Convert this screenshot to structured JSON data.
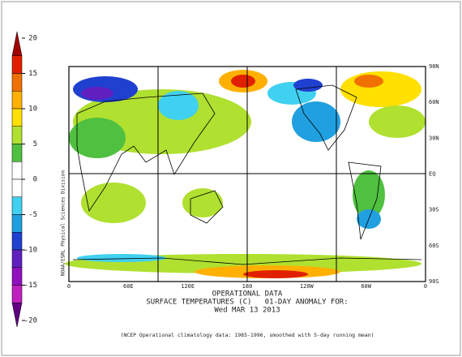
{
  "colorbar": {
    "lim": [
      -20,
      20
    ],
    "ticks": [
      20,
      15,
      10,
      5,
      0,
      -5,
      -10,
      -15,
      -20
    ],
    "colors": [
      "#a00000",
      "#e02000",
      "#f07000",
      "#ffb000",
      "#ffe000",
      "#b0e030",
      "#50c040",
      "#ffffff",
      "#ffffff",
      "#40d0f0",
      "#20a0e0",
      "#2040d0",
      "#6020c0",
      "#9010c0",
      "#c020c0",
      "#600080"
    ]
  },
  "map": {
    "x_labels": [
      "0",
      "60E",
      "120E",
      "180",
      "120W",
      "60W",
      "0"
    ],
    "y_labels": [
      "90N",
      "60N",
      "30N",
      "EQ",
      "30S",
      "60S",
      "90S"
    ],
    "source": "NOAA/ESRL Physical Sciences Division"
  },
  "caption": [
    "OPERATIONAL DATA",
    "SURFACE TEMPERATURES (C)   01-DAY ANOMALY FOR:",
    "Wed MAR 13 2013"
  ],
  "footnote": "(NCEP Operational climatology data: 1985-1996, smoothed with 5-day running mean)"
}
